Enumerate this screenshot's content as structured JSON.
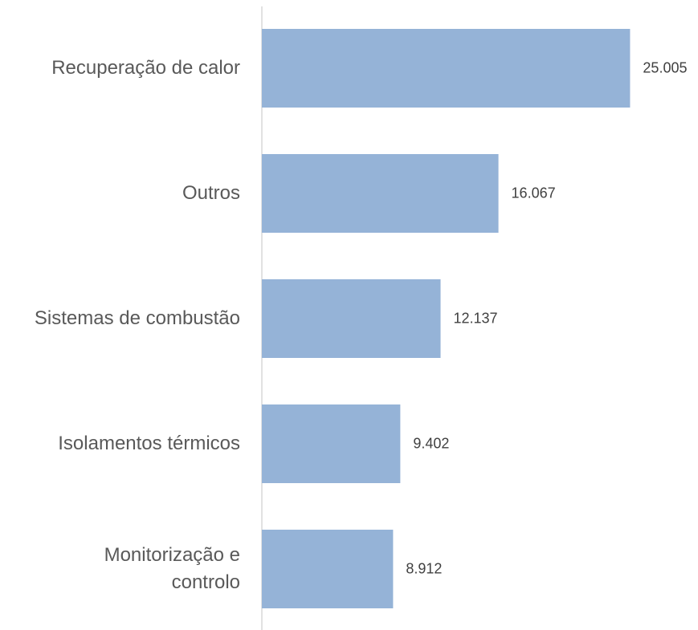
{
  "chart_data": {
    "type": "barh",
    "categories": [
      "Recuperação de calor",
      "Outros",
      "Sistemas de combustão",
      "Isolamentos térmicos",
      "Monitorização e\ncontrolo"
    ],
    "values": [
      25005,
      16067,
      12137,
      9402,
      8912
    ],
    "value_labels": [
      "25.005",
      "16.067",
      "12.137",
      "9.402",
      "8.912"
    ],
    "color": "#95b3d7",
    "xlim": [
      0,
      30000
    ]
  }
}
